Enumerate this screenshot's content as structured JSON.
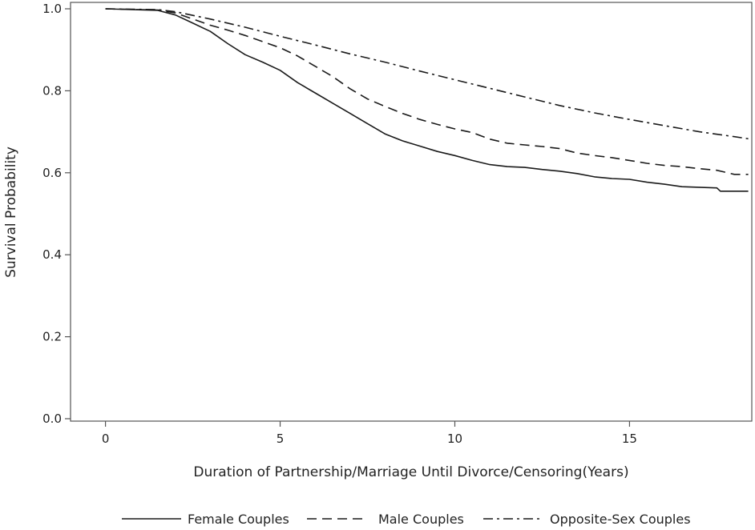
{
  "chart_data": {
    "type": "line",
    "xlabel": "Duration of Partnership/Marriage Until Divorce/Censoring(Years)",
    "ylabel": "Survival Probability",
    "xlim": [
      -1,
      18.5
    ],
    "ylim": [
      0,
      1.0
    ],
    "x_ticks": [
      {
        "value": 0,
        "label": "0"
      },
      {
        "value": 5,
        "label": "5"
      },
      {
        "value": 10,
        "label": "10"
      },
      {
        "value": 15,
        "label": "15"
      }
    ],
    "y_ticks": [
      {
        "value": 0.0,
        "label": "0.0"
      },
      {
        "value": 0.2,
        "label": "0.2"
      },
      {
        "value": 0.4,
        "label": "0.4"
      },
      {
        "value": 0.6,
        "label": "0.6"
      },
      {
        "value": 0.8,
        "label": "0.8"
      },
      {
        "value": 1.0,
        "label": "1.0"
      }
    ],
    "grid": false,
    "legend_position": "bottom",
    "series": [
      {
        "name": "Female Couples",
        "style": "solid",
        "color": "#1a1a1a",
        "points": [
          [
            0,
            1.0
          ],
          [
            1.5,
            0.996
          ],
          [
            2.0,
            0.985
          ],
          [
            2.5,
            0.965
          ],
          [
            3.0,
            0.945
          ],
          [
            3.5,
            0.915
          ],
          [
            4.0,
            0.888
          ],
          [
            4.5,
            0.87
          ],
          [
            5.0,
            0.85
          ],
          [
            5.5,
            0.82
          ],
          [
            6.0,
            0.795
          ],
          [
            6.5,
            0.77
          ],
          [
            7.0,
            0.745
          ],
          [
            7.5,
            0.72
          ],
          [
            8.0,
            0.695
          ],
          [
            8.5,
            0.678
          ],
          [
            9.0,
            0.665
          ],
          [
            9.5,
            0.652
          ],
          [
            10.0,
            0.642
          ],
          [
            10.5,
            0.63
          ],
          [
            11.0,
            0.62
          ],
          [
            11.5,
            0.615
          ],
          [
            12.0,
            0.613
          ],
          [
            12.5,
            0.608
          ],
          [
            13.0,
            0.604
          ],
          [
            13.5,
            0.598
          ],
          [
            14.0,
            0.59
          ],
          [
            14.5,
            0.586
          ],
          [
            15.0,
            0.584
          ],
          [
            15.5,
            0.577
          ],
          [
            16.0,
            0.572
          ],
          [
            16.5,
            0.566
          ],
          [
            17.5,
            0.563
          ],
          [
            17.6,
            0.555
          ],
          [
            18.4,
            0.555
          ]
        ]
      },
      {
        "name": "Male Couples",
        "style": "dashed",
        "color": "#1a1a1a",
        "points": [
          [
            0,
            1.0
          ],
          [
            1.5,
            0.997
          ],
          [
            2.0,
            0.99
          ],
          [
            2.5,
            0.975
          ],
          [
            3.0,
            0.96
          ],
          [
            3.5,
            0.948
          ],
          [
            4.0,
            0.935
          ],
          [
            4.5,
            0.92
          ],
          [
            5.0,
            0.905
          ],
          [
            5.5,
            0.885
          ],
          [
            6.0,
            0.86
          ],
          [
            6.5,
            0.835
          ],
          [
            7.0,
            0.805
          ],
          [
            7.5,
            0.78
          ],
          [
            8.0,
            0.762
          ],
          [
            8.5,
            0.745
          ],
          [
            9.0,
            0.73
          ],
          [
            9.5,
            0.718
          ],
          [
            10.0,
            0.707
          ],
          [
            10.5,
            0.698
          ],
          [
            11.0,
            0.682
          ],
          [
            11.5,
            0.672
          ],
          [
            12.0,
            0.668
          ],
          [
            12.5,
            0.664
          ],
          [
            13.0,
            0.659
          ],
          [
            13.5,
            0.648
          ],
          [
            14.0,
            0.642
          ],
          [
            14.5,
            0.637
          ],
          [
            15.0,
            0.63
          ],
          [
            15.5,
            0.623
          ],
          [
            16.0,
            0.618
          ],
          [
            16.5,
            0.615
          ],
          [
            17.0,
            0.61
          ],
          [
            17.5,
            0.606
          ],
          [
            18.0,
            0.596
          ],
          [
            18.4,
            0.596
          ]
        ]
      },
      {
        "name": "Opposite-Sex Couples",
        "style": "dashdot",
        "color": "#1a1a1a",
        "points": [
          [
            0,
            1.0
          ],
          [
            1.5,
            0.998
          ],
          [
            2.0,
            0.993
          ],
          [
            3.0,
            0.975
          ],
          [
            4.0,
            0.955
          ],
          [
            5.0,
            0.933
          ],
          [
            6.0,
            0.912
          ],
          [
            7.0,
            0.89
          ],
          [
            8.0,
            0.87
          ],
          [
            9.0,
            0.848
          ],
          [
            10.0,
            0.827
          ],
          [
            11.0,
            0.806
          ],
          [
            12.0,
            0.785
          ],
          [
            13.0,
            0.764
          ],
          [
            14.0,
            0.746
          ],
          [
            15.0,
            0.73
          ],
          [
            16.0,
            0.715
          ],
          [
            17.0,
            0.7
          ],
          [
            18.0,
            0.688
          ],
          [
            18.4,
            0.683
          ]
        ]
      }
    ]
  }
}
